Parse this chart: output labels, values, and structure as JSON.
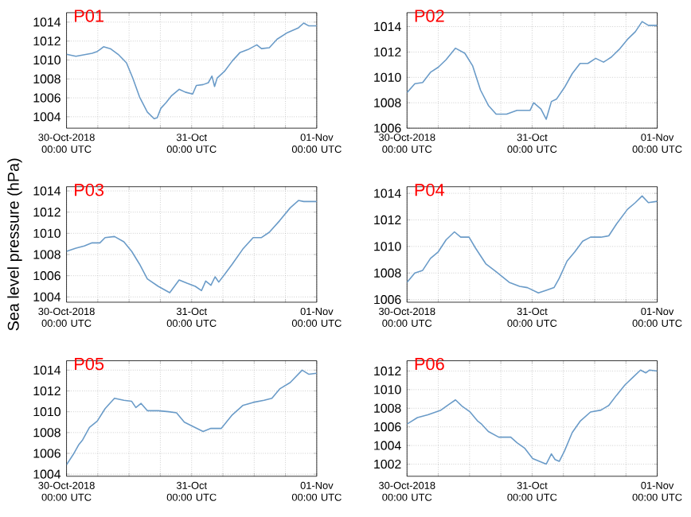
{
  "chart_data": [
    {
      "type": "line",
      "title": "P01",
      "xlim": [
        "2018-10-30T00:00",
        "2018-11-01T00:00"
      ],
      "ylim": [
        1002.8,
        1015
      ],
      "yticks": [
        1004,
        1006,
        1008,
        1010,
        1012,
        1014
      ],
      "grid": true,
      "xticks": [
        {
          "value": "2018-10-30T00:00",
          "label": "30-Oct-2018 00:00 UTC"
        },
        {
          "value": "2018-10-30T06:00",
          "label": null
        },
        {
          "value": "2018-10-30T12:00",
          "label": null
        },
        {
          "value": "2018-10-30T18:00",
          "label": null
        },
        {
          "value": "2018-10-31T00:00",
          "label": "31-Oct 00:00 UTC"
        },
        {
          "value": "2018-10-31T06:00",
          "label": null
        },
        {
          "value": "2018-10-31T12:00",
          "label": null
        },
        {
          "value": "2018-10-31T18:00",
          "label": null
        },
        {
          "value": "2018-11-01T00:00",
          "label": "01-Nov 00:00 UTC"
        }
      ],
      "series": [
        {
          "color": "#6a9bc8",
          "x": [
            "2018-10-30T00:00",
            "2018-10-30T01:48",
            "2018-10-30T04:54",
            "2018-10-30T05:54",
            "2018-10-30T06:24",
            "2018-10-30T07:06",
            "2018-10-30T08:24",
            "2018-10-30T09:54",
            "2018-10-30T11:30",
            "2018-10-30T12:42",
            "2018-10-30T14:00",
            "2018-10-30T15:30",
            "2018-10-30T16:48",
            "2018-10-30T17:24",
            "2018-10-30T18:06",
            "2018-10-30T19:06",
            "2018-10-30T20:06",
            "2018-10-30T21:36",
            "2018-10-30T22:48",
            "2018-10-31T00:12",
            "2018-10-31T00:54",
            "2018-10-31T02:12",
            "2018-10-31T03:12",
            "2018-10-31T03:54",
            "2018-10-31T04:24",
            "2018-10-31T04:54",
            "2018-10-31T06:18",
            "2018-10-31T07:48",
            "2018-10-31T09:18",
            "2018-10-31T10:48",
            "2018-10-31T12:30",
            "2018-10-31T13:24",
            "2018-10-31T14:54",
            "2018-10-31T16:24",
            "2018-10-31T18:24",
            "2018-10-31T20:30",
            "2018-10-31T21:30",
            "2018-10-31T22:30",
            "2018-11-01T00:00"
          ],
          "values": [
            1010.6,
            1010.4,
            1010.7,
            1010.9,
            1011.1,
            1011.4,
            1011.2,
            1010.6,
            1009.7,
            1008.1,
            1006.1,
            1004.5,
            1003.8,
            1003.9,
            1004.9,
            1005.5,
            1006.2,
            1006.9,
            1006.6,
            1006.4,
            1007.3,
            1007.4,
            1007.6,
            1008.3,
            1007.2,
            1008.1,
            1008.8,
            1009.9,
            1010.8,
            1011.1,
            1011.6,
            1011.2,
            1011.3,
            1012.2,
            1012.9,
            1013.4,
            1013.9,
            1013.6,
            1013.6
          ]
        }
      ]
    },
    {
      "type": "line",
      "title": "P02",
      "xlim": [
        "2018-10-30T00:00",
        "2018-11-01T00:00"
      ],
      "ylim": [
        1006,
        1015.1
      ],
      "yticks": [
        1006,
        1008,
        1010,
        1012,
        1014
      ],
      "grid": true,
      "xticks": [
        {
          "value": "2018-10-30T00:00",
          "label": "30-Oct-2018 00:00 UTC"
        },
        {
          "value": "2018-10-30T06:00",
          "label": null
        },
        {
          "value": "2018-10-30T12:00",
          "label": null
        },
        {
          "value": "2018-10-30T18:00",
          "label": null
        },
        {
          "value": "2018-10-31T00:00",
          "label": "31-Oct 00:00 UTC"
        },
        {
          "value": "2018-10-31T06:00",
          "label": null
        },
        {
          "value": "2018-10-31T12:00",
          "label": null
        },
        {
          "value": "2018-10-31T18:00",
          "label": null
        },
        {
          "value": "2018-11-01T00:00",
          "label": "01-Nov 00:00 UTC"
        }
      ],
      "series": [
        {
          "color": "#6a9bc8",
          "x": [
            "2018-10-30T00:00",
            "2018-10-30T01:30",
            "2018-10-30T03:00",
            "2018-10-30T04:30",
            "2018-10-30T06:00",
            "2018-10-30T07:30",
            "2018-10-30T09:18",
            "2018-10-30T11:06",
            "2018-10-30T12:36",
            "2018-10-30T14:06",
            "2018-10-30T15:36",
            "2018-10-30T17:06",
            "2018-10-30T19:06",
            "2018-10-30T21:06",
            "2018-10-30T23:36",
            "2018-10-31T00:18",
            "2018-10-31T01:42",
            "2018-10-31T02:42",
            "2018-10-31T03:42",
            "2018-10-31T04:42",
            "2018-10-31T06:12",
            "2018-10-31T07:42",
            "2018-10-31T09:12",
            "2018-10-31T10:42",
            "2018-10-31T12:12",
            "2018-10-31T13:42",
            "2018-10-31T15:12",
            "2018-10-31T16:42",
            "2018-10-31T18:18",
            "2018-10-31T19:48",
            "2018-10-31T21:06",
            "2018-10-31T22:18",
            "2018-11-01T00:00"
          ],
          "values": [
            1008.8,
            1009.5,
            1009.6,
            1010.4,
            1010.8,
            1011.4,
            1012.3,
            1011.9,
            1010.9,
            1009.0,
            1007.8,
            1007.1,
            1007.1,
            1007.4,
            1007.4,
            1008.0,
            1007.5,
            1006.7,
            1008.1,
            1008.3,
            1009.2,
            1010.3,
            1011.1,
            1011.1,
            1011.5,
            1011.2,
            1011.6,
            1012.2,
            1013.0,
            1013.6,
            1014.4,
            1014.1,
            1014.1
          ]
        }
      ]
    },
    {
      "type": "line",
      "title": "P03",
      "ylabel": "Sea level pressure (hPa)",
      "xlim": [
        "2018-10-30T00:00",
        "2018-11-01T00:00"
      ],
      "ylim": [
        1003.5,
        1014.4
      ],
      "yticks": [
        1004,
        1006,
        1008,
        1010,
        1012,
        1014
      ],
      "grid": true,
      "xticks": [
        {
          "value": "2018-10-30T00:00",
          "label": "30-Oct-2018 00:00 UTC"
        },
        {
          "value": "2018-10-30T06:00",
          "label": null
        },
        {
          "value": "2018-10-30T12:00",
          "label": null
        },
        {
          "value": "2018-10-30T18:00",
          "label": null
        },
        {
          "value": "2018-10-31T00:00",
          "label": "31-Oct 00:00 UTC"
        },
        {
          "value": "2018-10-31T06:00",
          "label": null
        },
        {
          "value": "2018-10-31T12:00",
          "label": null
        },
        {
          "value": "2018-10-31T18:00",
          "label": null
        },
        {
          "value": "2018-11-01T00:00",
          "label": "01-Nov 00:00 UTC"
        }
      ],
      "series": [
        {
          "color": "#6a9bc8",
          "x": [
            "2018-10-30T00:00",
            "2018-10-30T01:48",
            "2018-10-30T03:24",
            "2018-10-30T04:54",
            "2018-10-30T06:24",
            "2018-10-30T07:24",
            "2018-10-30T09:12",
            "2018-10-30T11:00",
            "2018-10-30T12:30",
            "2018-10-30T14:00",
            "2018-10-30T15:30",
            "2018-10-30T17:36",
            "2018-10-30T19:48",
            "2018-10-30T21:36",
            "2018-10-30T23:06",
            "2018-10-31T00:42",
            "2018-10-31T01:54",
            "2018-10-31T02:42",
            "2018-10-31T03:42",
            "2018-10-31T04:30",
            "2018-10-31T05:12",
            "2018-10-31T06:18",
            "2018-10-31T07:48",
            "2018-10-31T09:48",
            "2018-10-31T11:48",
            "2018-10-31T13:24",
            "2018-10-31T14:54",
            "2018-10-31T16:54",
            "2018-10-31T18:54",
            "2018-10-31T20:30",
            "2018-10-31T21:30",
            "2018-11-01T00:00"
          ],
          "values": [
            1008.3,
            1008.6,
            1008.8,
            1009.1,
            1009.1,
            1009.6,
            1009.7,
            1009.2,
            1008.3,
            1007.1,
            1005.7,
            1005.0,
            1004.4,
            1005.6,
            1005.3,
            1005.0,
            1004.6,
            1005.5,
            1005.1,
            1005.9,
            1005.4,
            1006.1,
            1007.1,
            1008.5,
            1009.6,
            1009.6,
            1010.1,
            1011.2,
            1012.4,
            1013.1,
            1013.0,
            1013.0
          ]
        }
      ]
    },
    {
      "type": "line",
      "title": "P04",
      "xlim": [
        "2018-10-30T00:00",
        "2018-11-01T00:00"
      ],
      "ylim": [
        1005.8,
        1014.5
      ],
      "yticks": [
        1006,
        1008,
        1010,
        1012,
        1014
      ],
      "grid": true,
      "xticks": [
        {
          "value": "2018-10-30T00:00",
          "label": "30-Oct-2018 00:00 UTC"
        },
        {
          "value": "2018-10-30T06:00",
          "label": null
        },
        {
          "value": "2018-10-30T12:00",
          "label": null
        },
        {
          "value": "2018-10-30T18:00",
          "label": null
        },
        {
          "value": "2018-10-31T00:00",
          "label": "31-Oct 00:00 UTC"
        },
        {
          "value": "2018-10-31T06:00",
          "label": null
        },
        {
          "value": "2018-10-31T12:00",
          "label": null
        },
        {
          "value": "2018-10-31T18:00",
          "label": null
        },
        {
          "value": "2018-11-01T00:00",
          "label": "01-Nov 00:00 UTC"
        }
      ],
      "series": [
        {
          "color": "#6a9bc8",
          "x": [
            "2018-10-30T00:00",
            "2018-10-30T01:30",
            "2018-10-30T03:00",
            "2018-10-30T04:30",
            "2018-10-30T06:00",
            "2018-10-30T07:30",
            "2018-10-30T09:06",
            "2018-10-30T10:18",
            "2018-10-30T11:54",
            "2018-10-30T13:06",
            "2018-10-30T15:06",
            "2018-10-30T17:06",
            "2018-10-30T19:36",
            "2018-10-30T21:36",
            "2018-10-30T23:06",
            "2018-10-31T01:12",
            "2018-10-31T02:42",
            "2018-10-31T04:12",
            "2018-10-31T05:12",
            "2018-10-31T06:42",
            "2018-10-31T08:12",
            "2018-10-31T09:42",
            "2018-10-31T11:12",
            "2018-10-31T13:12",
            "2018-10-31T14:42",
            "2018-10-31T16:12",
            "2018-10-31T18:18",
            "2018-10-31T19:48",
            "2018-10-31T21:06",
            "2018-10-31T22:18",
            "2018-11-01T00:00"
          ],
          "values": [
            1007.3,
            1008.0,
            1008.2,
            1009.1,
            1009.6,
            1010.5,
            1011.1,
            1010.7,
            1010.7,
            1009.9,
            1008.7,
            1008.1,
            1007.3,
            1007.0,
            1006.9,
            1006.5,
            1006.7,
            1006.9,
            1007.6,
            1008.9,
            1009.6,
            1010.4,
            1010.7,
            1010.7,
            1010.8,
            1011.7,
            1012.8,
            1013.3,
            1013.8,
            1013.3,
            1013.4
          ]
        }
      ]
    },
    {
      "type": "line",
      "title": "P05",
      "xlim": [
        "2018-10-30T00:00",
        "2018-11-01T00:00"
      ],
      "ylim": [
        1003.8,
        1014.9
      ],
      "yticks": [
        1004,
        1006,
        1008,
        1010,
        1012,
        1014
      ],
      "grid": true,
      "xticks": [
        {
          "value": "2018-10-30T00:00",
          "label": "30-Oct-2018 00:00 UTC"
        },
        {
          "value": "2018-10-30T06:00",
          "label": null
        },
        {
          "value": "2018-10-30T12:00",
          "label": null
        },
        {
          "value": "2018-10-30T18:00",
          "label": null
        },
        {
          "value": "2018-10-31T00:00",
          "label": "31-Oct 00:00 UTC"
        },
        {
          "value": "2018-10-31T06:00",
          "label": null
        },
        {
          "value": "2018-10-31T12:00",
          "label": null
        },
        {
          "value": "2018-10-31T18:00",
          "label": null
        },
        {
          "value": "2018-11-01T00:00",
          "label": "01-Nov 00:00 UTC"
        }
      ],
      "series": [
        {
          "color": "#6a9bc8",
          "x": [
            "2018-10-30T00:00",
            "2018-10-30T01:18",
            "2018-10-30T02:18",
            "2018-10-30T03:06",
            "2018-10-30T04:24",
            "2018-10-30T05:54",
            "2018-10-30T07:24",
            "2018-10-30T09:12",
            "2018-10-30T11:00",
            "2018-10-30T12:30",
            "2018-10-30T13:18",
            "2018-10-30T14:18",
            "2018-10-30T15:30",
            "2018-10-30T17:36",
            "2018-10-30T19:36",
            "2018-10-30T21:06",
            "2018-10-30T22:36",
            "2018-10-31T00:12",
            "2018-10-31T02:12",
            "2018-10-31T03:42",
            "2018-10-31T05:42",
            "2018-10-31T07:48",
            "2018-10-31T09:48",
            "2018-10-31T11:48",
            "2018-10-31T13:54",
            "2018-10-31T15:24",
            "2018-10-31T16:54",
            "2018-10-31T18:54",
            "2018-10-31T21:12",
            "2018-10-31T22:30",
            "2018-11-01T00:00"
          ],
          "values": [
            1004.9,
            1005.9,
            1006.8,
            1007.3,
            1008.5,
            1009.1,
            1010.3,
            1011.3,
            1011.1,
            1011.0,
            1010.4,
            1010.8,
            1010.1,
            1010.1,
            1010.0,
            1009.9,
            1009.0,
            1008.6,
            1008.1,
            1008.4,
            1008.4,
            1009.7,
            1010.6,
            1010.9,
            1011.1,
            1011.3,
            1012.2,
            1012.8,
            1014.0,
            1013.6,
            1013.7
          ]
        }
      ]
    },
    {
      "type": "line",
      "title": "P06",
      "xlim": [
        "2018-10-30T00:00",
        "2018-11-01T00:00"
      ],
      "ylim": [
        1000.7,
        1013.1
      ],
      "yticks": [
        1002,
        1004,
        1006,
        1008,
        1010,
        1012
      ],
      "grid": true,
      "xticks": [
        {
          "value": "2018-10-30T00:00",
          "label": "30-Oct-2018 00:00 UTC"
        },
        {
          "value": "2018-10-30T06:00",
          "label": null
        },
        {
          "value": "2018-10-30T12:00",
          "label": null
        },
        {
          "value": "2018-10-30T18:00",
          "label": null
        },
        {
          "value": "2018-10-31T00:00",
          "label": "31-Oct 00:00 UTC"
        },
        {
          "value": "2018-10-31T06:00",
          "label": null
        },
        {
          "value": "2018-10-31T12:00",
          "label": null
        },
        {
          "value": "2018-10-31T18:00",
          "label": null
        },
        {
          "value": "2018-11-01T00:00",
          "label": "01-Nov 00:00 UTC"
        }
      ],
      "series": [
        {
          "color": "#6a9bc8",
          "x": [
            "2018-10-30T00:00",
            "2018-10-30T02:00",
            "2018-10-30T04:00",
            "2018-10-30T06:30",
            "2018-10-30T08:00",
            "2018-10-30T09:18",
            "2018-10-30T10:36",
            "2018-10-30T12:06",
            "2018-10-30T13:36",
            "2018-10-30T14:18",
            "2018-10-30T15:36",
            "2018-10-30T17:36",
            "2018-10-30T19:54",
            "2018-10-30T21:06",
            "2018-10-30T22:36",
            "2018-10-31T00:06",
            "2018-10-31T01:24",
            "2018-10-31T02:42",
            "2018-10-31T03:42",
            "2018-10-31T04:24",
            "2018-10-31T05:12",
            "2018-10-31T06:12",
            "2018-10-31T07:42",
            "2018-10-31T09:12",
            "2018-10-31T11:12",
            "2018-10-31T13:12",
            "2018-10-31T14:42",
            "2018-10-31T16:12",
            "2018-10-31T17:48",
            "2018-10-31T19:18",
            "2018-10-31T20:48",
            "2018-10-31T21:48",
            "2018-10-31T22:30",
            "2018-11-01T00:00"
          ],
          "values": [
            1006.3,
            1007.0,
            1007.3,
            1007.8,
            1008.4,
            1008.9,
            1008.2,
            1007.6,
            1006.6,
            1006.3,
            1005.5,
            1004.9,
            1004.9,
            1004.3,
            1003.7,
            1002.6,
            1002.3,
            1002.0,
            1003.1,
            1002.5,
            1002.3,
            1003.4,
            1005.4,
            1006.6,
            1007.6,
            1007.8,
            1008.3,
            1009.4,
            1010.5,
            1011.3,
            1012.1,
            1011.8,
            1012.1,
            1012.0
          ]
        }
      ]
    }
  ]
}
